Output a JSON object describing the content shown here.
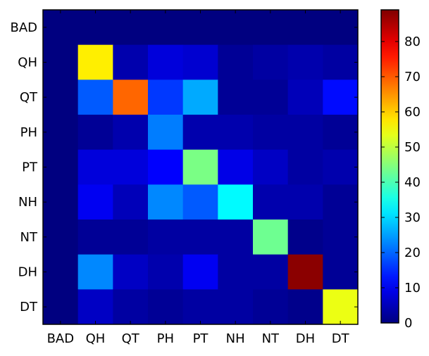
{
  "chart_data": {
    "type": "heatmap",
    "title": "",
    "xlabel": "",
    "ylabel": "",
    "x_categories": [
      "BAD",
      "QH",
      "QT",
      "PH",
      "PT",
      "NH",
      "NT",
      "DH",
      "DT"
    ],
    "y_categories": [
      "BAD",
      "QH",
      "QT",
      "PH",
      "PT",
      "NH",
      "NT",
      "DH",
      "DT"
    ],
    "values": [
      [
        0,
        0,
        0,
        0,
        0,
        0,
        0,
        0,
        0
      ],
      [
        0,
        57,
        4,
        8,
        7,
        2,
        3,
        4,
        3
      ],
      [
        0,
        19,
        69,
        16,
        26,
        2,
        2,
        5,
        12
      ],
      [
        0,
        2,
        4,
        22,
        4,
        4,
        3,
        3,
        2
      ],
      [
        0,
        8,
        8,
        11,
        44,
        9,
        6,
        3,
        4
      ],
      [
        0,
        10,
        5,
        23,
        19,
        33,
        4,
        4,
        2
      ],
      [
        0,
        2,
        2,
        3,
        3,
        3,
        43,
        1,
        2
      ],
      [
        0,
        23,
        6,
        4,
        10,
        3,
        3,
        88,
        2
      ],
      [
        0,
        6,
        3,
        2,
        3,
        3,
        2,
        1,
        54
      ]
    ],
    "colorbar": {
      "colormap": "jet",
      "range": [
        0,
        89
      ],
      "ticks": [
        0,
        10,
        20,
        30,
        40,
        50,
        60,
        70,
        80
      ]
    },
    "grid": false,
    "legend": "none"
  }
}
